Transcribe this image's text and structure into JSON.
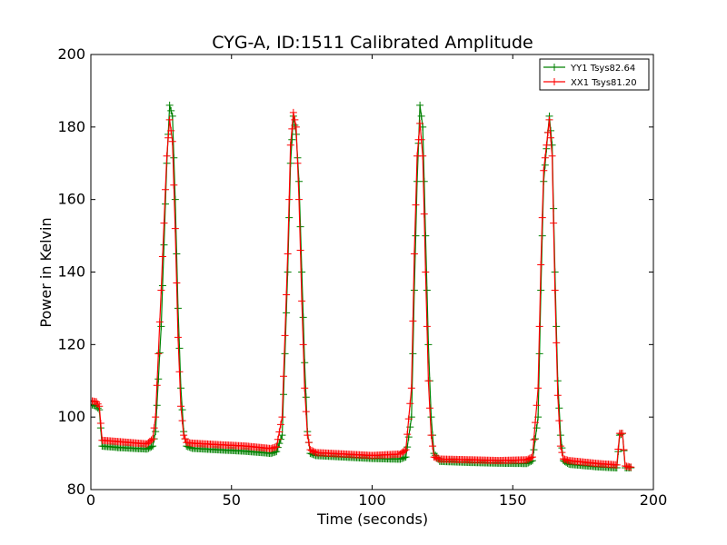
{
  "chart_data": {
    "type": "line",
    "title": "CYG-A, ID:1511 Calibrated Amplitude",
    "xlabel": "Time (seconds)",
    "ylabel": "Power in Kelvin",
    "xlim": [
      0,
      200
    ],
    "ylim": [
      80,
      200
    ],
    "xticks": [
      "0",
      "50",
      "100",
      "150",
      "200"
    ],
    "yticks": [
      "80",
      "100",
      "120",
      "140",
      "160",
      "180",
      "200"
    ],
    "grid": false,
    "legend_position": "top-right",
    "marker": "+",
    "series": [
      {
        "name": "YY1 Tsys82.64",
        "color": "#008000",
        "keyframes": [
          [
            0,
            103.5
          ],
          [
            2,
            103
          ],
          [
            3,
            102
          ],
          [
            4,
            92
          ],
          [
            10,
            91.6
          ],
          [
            20,
            91.2
          ],
          [
            22,
            92
          ],
          [
            23,
            96
          ],
          [
            25,
            125
          ],
          [
            27,
            170
          ],
          [
            28,
            186
          ],
          [
            29,
            183
          ],
          [
            30,
            160
          ],
          [
            31,
            130
          ],
          [
            32,
            108
          ],
          [
            33,
            96
          ],
          [
            34,
            92
          ],
          [
            36,
            91.4
          ],
          [
            45,
            91
          ],
          [
            55,
            90.6
          ],
          [
            64,
            90
          ],
          [
            66,
            90.5
          ],
          [
            68,
            95
          ],
          [
            70,
            140
          ],
          [
            71,
            170
          ],
          [
            72,
            183
          ],
          [
            73,
            178
          ],
          [
            74,
            165
          ],
          [
            75,
            140
          ],
          [
            76,
            115
          ],
          [
            77,
            96
          ],
          [
            78,
            90
          ],
          [
            80,
            89.4
          ],
          [
            90,
            89
          ],
          [
            100,
            88.6
          ],
          [
            110,
            88.4
          ],
          [
            112,
            89
          ],
          [
            114,
            100
          ],
          [
            115,
            135
          ],
          [
            116,
            165
          ],
          [
            117,
            186
          ],
          [
            118,
            180
          ],
          [
            119,
            150
          ],
          [
            120,
            120
          ],
          [
            121,
            100
          ],
          [
            122,
            90
          ],
          [
            124,
            87.8
          ],
          [
            135,
            87.5
          ],
          [
            145,
            87.3
          ],
          [
            155,
            87.2
          ],
          [
            157,
            88
          ],
          [
            159,
            100
          ],
          [
            160,
            135
          ],
          [
            161,
            165
          ],
          [
            163,
            183
          ],
          [
            164,
            175
          ],
          [
            165,
            140
          ],
          [
            166,
            110
          ],
          [
            167,
            95
          ],
          [
            168,
            88
          ],
          [
            170,
            87
          ],
          [
            180,
            86.3
          ],
          [
            187,
            86
          ],
          [
            188,
            95
          ],
          [
            189,
            95.5
          ],
          [
            190,
            86
          ],
          [
            192,
            86
          ]
        ]
      },
      {
        "name": "XX1 Tsys81.20",
        "color": "#ff0000",
        "keyframes": [
          [
            0,
            104.5
          ],
          [
            2,
            104.2
          ],
          [
            3,
            103
          ],
          [
            4,
            93.6
          ],
          [
            10,
            93.2
          ],
          [
            20,
            92.6
          ],
          [
            22,
            94
          ],
          [
            23,
            100
          ],
          [
            25,
            135
          ],
          [
            27,
            172
          ],
          [
            28,
            182
          ],
          [
            29,
            176
          ],
          [
            30,
            152
          ],
          [
            31,
            122
          ],
          [
            32,
            103
          ],
          [
            33,
            95
          ],
          [
            34,
            93
          ],
          [
            36,
            92.8
          ],
          [
            45,
            92.4
          ],
          [
            55,
            92
          ],
          [
            64,
            91.3
          ],
          [
            66,
            91.8
          ],
          [
            68,
            100
          ],
          [
            70,
            145
          ],
          [
            71,
            175
          ],
          [
            72,
            184
          ],
          [
            73,
            180
          ],
          [
            74,
            160
          ],
          [
            75,
            132
          ],
          [
            76,
            108
          ],
          [
            77,
            95
          ],
          [
            78,
            91
          ],
          [
            80,
            90.2
          ],
          [
            90,
            89.8
          ],
          [
            100,
            89.4
          ],
          [
            110,
            89.8
          ],
          [
            112,
            91
          ],
          [
            114,
            108
          ],
          [
            115,
            145
          ],
          [
            116,
            172
          ],
          [
            117,
            181
          ],
          [
            118,
            172
          ],
          [
            119,
            140
          ],
          [
            120,
            110
          ],
          [
            121,
            95
          ],
          [
            122,
            89
          ],
          [
            124,
            88.4
          ],
          [
            135,
            88.2
          ],
          [
            145,
            88
          ],
          [
            155,
            88.2
          ],
          [
            157,
            89
          ],
          [
            159,
            108
          ],
          [
            160,
            142
          ],
          [
            161,
            168
          ],
          [
            163,
            182
          ],
          [
            164,
            172
          ],
          [
            165,
            135
          ],
          [
            166,
            106
          ],
          [
            167,
            92
          ],
          [
            168,
            88.5
          ],
          [
            170,
            88
          ],
          [
            180,
            87.2
          ],
          [
            187,
            86.8
          ],
          [
            188,
            95.5
          ],
          [
            189,
            95.5
          ],
          [
            190,
            86.5
          ],
          [
            192,
            86.2
          ]
        ]
      }
    ]
  }
}
